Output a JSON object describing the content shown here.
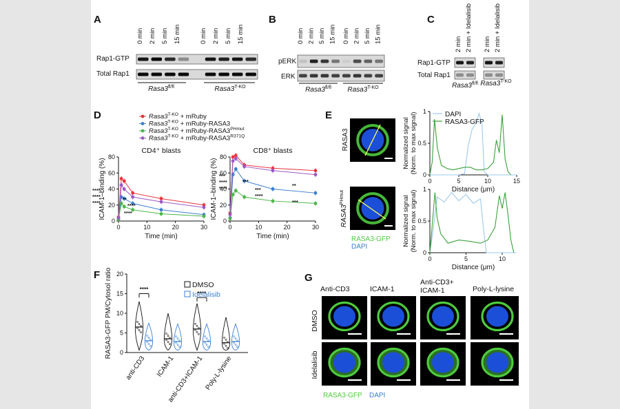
{
  "colors": {
    "red": "#e8333a",
    "blue": "#3b7fd1",
    "green": "#4cb649",
    "purple": "#9b59c6",
    "dapi_line": "#9cc9ee",
    "gfp_line": "#3aa23a",
    "dapi": "#1c4fd8",
    "gfp": "#4ecb3e"
  },
  "panelA": {
    "letter": "A",
    "lanes": [
      "0 min",
      "2 min",
      "5 min",
      "15 min",
      "0 min",
      "2 min",
      "5 min",
      "15 min"
    ],
    "rows": [
      "Rap1-GTP",
      "Total Rap1"
    ],
    "group1": "Rasa3",
    "group1_sup": "fl/fl",
    "group2": "Rasa3",
    "group2_sup": "T-KO"
  },
  "panelB": {
    "letter": "B",
    "lanes": [
      "0 min",
      "2 min",
      "5 min",
      "15 min",
      "0 min",
      "2 min",
      "5 min",
      "15 min"
    ],
    "rows": [
      "pERK",
      "ERK"
    ],
    "group1": "Rasa3",
    "group1_sup": "fl/fl",
    "group2": "Rasa3",
    "group2_sup": "T-KO"
  },
  "panelC": {
    "letter": "C",
    "lanes": [
      "2 min",
      "2 min + Idelalisib",
      "2 min",
      "2 min + Idelalisib"
    ],
    "rows": [
      "Rap1-GTP",
      "Total Rap1"
    ],
    "group1": "Rasa3",
    "group1_sup": "fl/fl",
    "group2": "Rasa3",
    "group2_sup": "T-KO"
  },
  "panelD": {
    "letter": "D",
    "legend": [
      {
        "gene": "Rasa3",
        "sup": "T-KO",
        "rest": " + mRuby"
      },
      {
        "gene": "Rasa3",
        "sup": "T-KO",
        "rest": " + mRuby-RASA3"
      },
      {
        "gene": "Rasa3",
        "sup": "T-KO",
        "rest": " + mRuby-RASA3",
        "rest_sup": "PHmut"
      },
      {
        "gene": "Rasa3",
        "sup": "T-KO",
        "rest": " + mRuby-RASA3",
        "rest_sup": "R371Q"
      }
    ],
    "stars": "****",
    "stars3": "***",
    "stars2": "**"
  },
  "panelE": {
    "letter": "E",
    "row1_label": "RASA3",
    "row2_label": "RASA3",
    "row2_sup": "PHmut",
    "legend_dapi": "RASA3-GFP",
    "legend_dapi2": "DAPI"
  },
  "panelF": {
    "letter": "F",
    "stars": "****",
    "legend": [
      "DMSO",
      "Idelalisib"
    ]
  },
  "panelG": {
    "letter": "G",
    "cols": [
      "Anti-CD3",
      "ICAM-1",
      "Anti-CD3+",
      "ICAM-1",
      "Poly-L-lysine"
    ],
    "rows": [
      "DMSO",
      "Idelalisib"
    ],
    "legend_gfp": "RASA3-GFP",
    "legend_dapi": "DAPI"
  },
  "chart_data": [
    {
      "type": "line",
      "title": "CD4⁺ blasts",
      "xlabel": "Time (min)",
      "ylabel": "ICAM-1–binding (%)",
      "x": [
        0,
        1,
        2,
        5,
        15,
        30
      ],
      "xlim": [
        0,
        30
      ],
      "ylim": [
        0,
        80
      ],
      "series": [
        {
          "name": "Rasa3 T-KO + mRuby",
          "values": [
            5,
            53,
            50,
            35,
            28,
            20
          ]
        },
        {
          "name": "Rasa3 T-KO + mRuby-RASA3",
          "values": [
            3,
            30,
            28,
            22,
            14,
            8
          ]
        },
        {
          "name": "Rasa3 T-KO + mRuby-RASA3 PHmut",
          "values": [
            2,
            22,
            18,
            14,
            9,
            6
          ]
        },
        {
          "name": "Rasa3 T-KO + mRuby-RASA3 R371Q",
          "values": [
            4,
            45,
            40,
            30,
            24,
            17
          ]
        }
      ]
    },
    {
      "type": "line",
      "title": "CD8⁺ blasts",
      "xlabel": "Time (min)",
      "ylabel": "ICAM-1–binding (%)",
      "x": [
        0,
        1,
        2,
        5,
        15,
        30
      ],
      "xlim": [
        0,
        30
      ],
      "ylim": [
        0,
        80
      ],
      "series": [
        {
          "name": "Rasa3 T-KO + mRuby",
          "values": [
            10,
            80,
            82,
            70,
            66,
            63
          ]
        },
        {
          "name": "Rasa3 T-KO + mRuby-RASA3",
          "values": [
            4,
            58,
            65,
            50,
            40,
            35
          ]
        },
        {
          "name": "Rasa3 T-KO + mRuby-RASA3 PHmut",
          "values": [
            3,
            33,
            38,
            30,
            25,
            22
          ]
        },
        {
          "name": "Rasa3 T-KO + mRuby-RASA3 R371Q",
          "values": [
            8,
            75,
            78,
            68,
            63,
            58
          ]
        }
      ]
    },
    {
      "type": "line",
      "title": "",
      "xlabel": "Distance (μm)",
      "ylabel": "Normalized signal (Norm. to max signal)",
      "xlim": [
        0,
        15
      ],
      "ylim": [
        0,
        1
      ],
      "xticks": [
        0,
        5,
        10,
        15
      ],
      "yticks": [
        0,
        0.5,
        1
      ],
      "legend": [
        "DAPI",
        "RASA3-GFP"
      ],
      "series": [
        {
          "name": "DAPI",
          "x": [
            0,
            5,
            6,
            6.6,
            7.3,
            8,
            8.5,
            9,
            9.4,
            10,
            15
          ],
          "values": [
            0,
            0,
            0.02,
            0.45,
            0.72,
            0.82,
            0.97,
            0.8,
            0.05,
            0,
            0
          ]
        },
        {
          "name": "RASA3-GFP",
          "x": [
            0,
            0.4,
            0.8,
            1.3,
            2,
            3,
            4,
            5,
            6,
            7,
            8,
            9,
            10,
            11,
            11.5,
            12,
            12.5,
            13,
            13.5,
            14
          ],
          "values": [
            0,
            0.2,
            0.88,
            0.42,
            0.15,
            0.1,
            0.08,
            0.1,
            0.12,
            0.12,
            0.08,
            0.08,
            0.1,
            0.2,
            0.55,
            0.35,
            0.95,
            0.25,
            0.05,
            0
          ]
        }
      ]
    },
    {
      "type": "line",
      "title": "",
      "xlabel": "Distance (μm)",
      "ylabel": "Normalized signal (Norm. to max signal)",
      "xlim": [
        0,
        12
      ],
      "ylim": [
        0,
        1
      ],
      "xticks": [
        0,
        5,
        10
      ],
      "yticks": [
        0,
        0.5,
        1
      ],
      "series": [
        {
          "name": "DAPI",
          "x": [
            0,
            0.5,
            1,
            2,
            3,
            4,
            5,
            6,
            7,
            7.3,
            7.8,
            12
          ],
          "values": [
            0,
            0.4,
            0.88,
            0.8,
            0.95,
            0.82,
            0.92,
            0.78,
            0.85,
            0.5,
            0,
            0
          ]
        },
        {
          "name": "RASA3-GFP",
          "x": [
            0,
            0.3,
            0.7,
            1,
            1.5,
            2.5,
            4,
            5.5,
            7,
            8,
            9,
            9.6,
            10,
            10.4,
            10.8,
            11.2,
            11.6
          ],
          "values": [
            0,
            0.4,
            0.95,
            0.55,
            0.3,
            0.15,
            0.2,
            0.18,
            0.15,
            0.2,
            0.4,
            0.9,
            0.7,
            0.95,
            0.6,
            0.2,
            0
          ]
        }
      ]
    },
    {
      "type": "violin",
      "title": "",
      "ylabel": "RASA3-GFP PM/Cytosol ratio",
      "ylim": [
        0,
        20
      ],
      "yticks": [
        0,
        5,
        10,
        15,
        20
      ],
      "categories": [
        "anti-CD3",
        "ICAM-1",
        "anti-CD3+ICAM-1",
        "Poly-L-lysine"
      ],
      "series": [
        {
          "name": "DMSO",
          "medians": [
            6.5,
            3.5,
            6,
            2.5
          ]
        },
        {
          "name": "Idelalisib",
          "medians": [
            3,
            2.8,
            2.8,
            2.8
          ]
        }
      ]
    }
  ]
}
